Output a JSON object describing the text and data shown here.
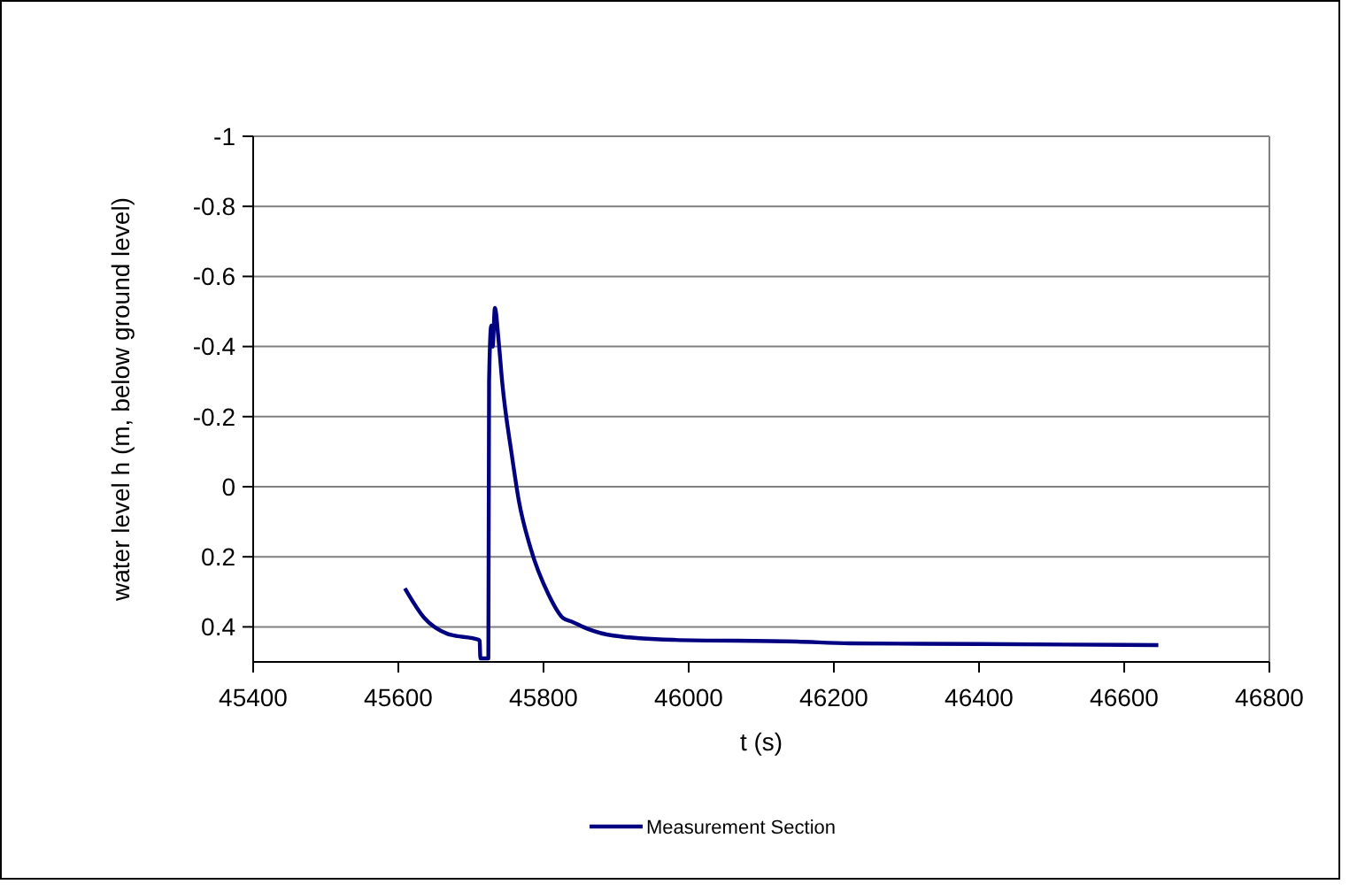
{
  "chart_data": {
    "type": "line",
    "xlabel": "t (s)",
    "ylabel": "water level h (m, below ground level)",
    "xlim": [
      45400,
      46800
    ],
    "xticks": [
      45400,
      45600,
      45800,
      46000,
      46200,
      46400,
      46600,
      46800
    ],
    "ylim": [
      0.5,
      -1
    ],
    "yticks": [
      -1,
      -0.8,
      -0.6,
      -0.4,
      -0.2,
      0,
      0.2,
      0.4
    ],
    "grid": "y",
    "legend": "bottom",
    "marker": "none",
    "line_style": "solid",
    "series": [
      {
        "name": "Measurement Section",
        "color": "#000080",
        "x": [
          45609,
          45636,
          45668,
          45711,
          45712,
          45713,
          45724,
          45725,
          45728,
          45730,
          45733,
          45738,
          45743,
          45756,
          45766,
          45782,
          45807,
          45827,
          45839,
          45860,
          45896,
          45978,
          46149,
          46222,
          46400,
          46647
        ],
        "values": [
          0.29,
          0.375,
          0.42,
          0.437,
          0.44,
          0.49,
          0.49,
          -0.3,
          -0.46,
          -0.4,
          -0.51,
          -0.42,
          -0.3,
          -0.095,
          0.04,
          0.174,
          0.308,
          0.375,
          0.385,
          0.405,
          0.425,
          0.437,
          0.442,
          0.447,
          0.449,
          0.452
        ]
      }
    ]
  }
}
